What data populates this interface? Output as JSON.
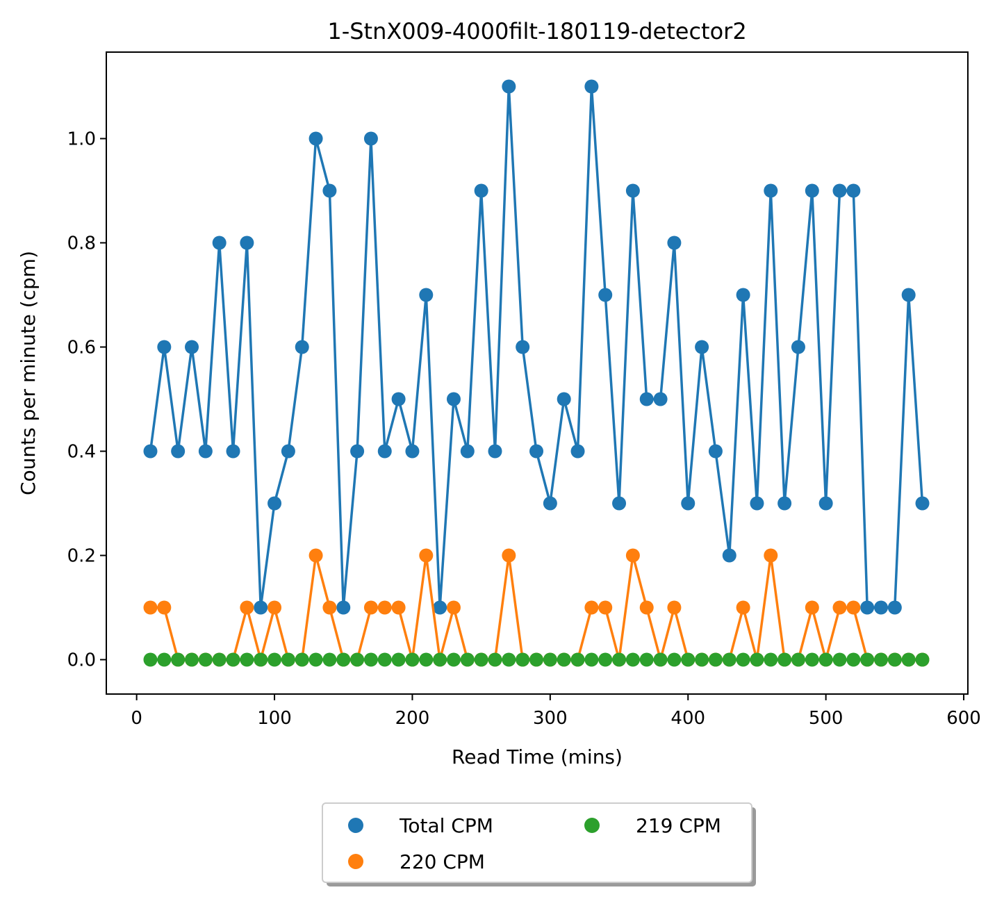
{
  "chart_data": {
    "type": "line",
    "title": "1-StnX009-4000filt-180119-detector2",
    "xlabel": "Read Time (mins)",
    "ylabel": "Counts per minute (cpm)",
    "xlim": [
      -22,
      603
    ],
    "ylim": [
      -0.066,
      1.166
    ],
    "xticks": [
      0,
      100,
      200,
      300,
      400,
      500,
      600
    ],
    "xtick_labels": [
      "0",
      "100",
      "200",
      "300",
      "400",
      "500",
      "600"
    ],
    "yticks": [
      0.0,
      0.2,
      0.4,
      0.6,
      0.8,
      1.0
    ],
    "ytick_labels": [
      "0.0",
      "0.2",
      "0.4",
      "0.6",
      "0.8",
      "1.0"
    ],
    "grid": false,
    "legend_position": "below-center",
    "x": [
      10,
      20,
      30,
      40,
      50,
      60,
      70,
      80,
      90,
      100,
      110,
      120,
      130,
      140,
      150,
      160,
      170,
      180,
      190,
      200,
      210,
      220,
      230,
      240,
      250,
      260,
      270,
      280,
      290,
      300,
      310,
      320,
      330,
      340,
      350,
      360,
      370,
      380,
      390,
      400,
      410,
      420,
      430,
      440,
      450,
      460,
      470,
      480,
      490,
      500,
      510,
      520,
      530,
      540,
      550,
      560,
      570
    ],
    "series": [
      {
        "name": "Total CPM",
        "color": "#1f77b4",
        "values": [
          0.4,
          0.6,
          0.4,
          0.6,
          0.4,
          0.8,
          0.4,
          0.8,
          0.1,
          0.3,
          0.4,
          0.6,
          1.0,
          0.9,
          0.1,
          0.4,
          1.0,
          0.4,
          0.5,
          0.4,
          0.7,
          0.1,
          0.5,
          0.4,
          0.9,
          0.4,
          1.1,
          0.6,
          0.4,
          0.3,
          0.5,
          0.4,
          1.1,
          0.7,
          0.3,
          0.9,
          0.5,
          0.5,
          0.8,
          0.3,
          0.6,
          0.4,
          0.2,
          0.7,
          0.3,
          0.9,
          0.3,
          0.6,
          0.9,
          0.3,
          0.9,
          0.9,
          0.1,
          0.1,
          0.1,
          0.7,
          0.3
        ]
      },
      {
        "name": "220 CPM",
        "color": "#ff7f0e",
        "values": [
          0.1,
          0.1,
          0.0,
          0.0,
          0.0,
          0.0,
          0.0,
          0.1,
          0.0,
          0.1,
          0.0,
          0.0,
          0.2,
          0.1,
          0.0,
          0.0,
          0.1,
          0.1,
          0.1,
          0.0,
          0.2,
          0.0,
          0.1,
          0.0,
          0.0,
          0.0,
          0.2,
          0.0,
          0.0,
          0.0,
          0.0,
          0.0,
          0.1,
          0.1,
          0.0,
          0.2,
          0.1,
          0.0,
          0.1,
          0.0,
          0.0,
          0.0,
          0.0,
          0.1,
          0.0,
          0.2,
          0.0,
          0.0,
          0.1,
          0.0,
          0.1,
          0.1,
          0.0,
          0.0,
          0.0,
          0.0,
          0.0
        ]
      },
      {
        "name": "219 CPM",
        "color": "#2ca02c",
        "values": [
          0.0,
          0.0,
          0.0,
          0.0,
          0.0,
          0.0,
          0.0,
          0.0,
          0.0,
          0.0,
          0.0,
          0.0,
          0.0,
          0.0,
          0.0,
          0.0,
          0.0,
          0.0,
          0.0,
          0.0,
          0.0,
          0.0,
          0.0,
          0.0,
          0.0,
          0.0,
          0.0,
          0.0,
          0.0,
          0.0,
          0.0,
          0.0,
          0.0,
          0.0,
          0.0,
          0.0,
          0.0,
          0.0,
          0.0,
          0.0,
          0.0,
          0.0,
          0.0,
          0.0,
          0.0,
          0.0,
          0.0,
          0.0,
          0.0,
          0.0,
          0.0,
          0.0,
          0.0,
          0.0,
          0.0,
          0.0,
          0.0
        ]
      }
    ]
  }
}
